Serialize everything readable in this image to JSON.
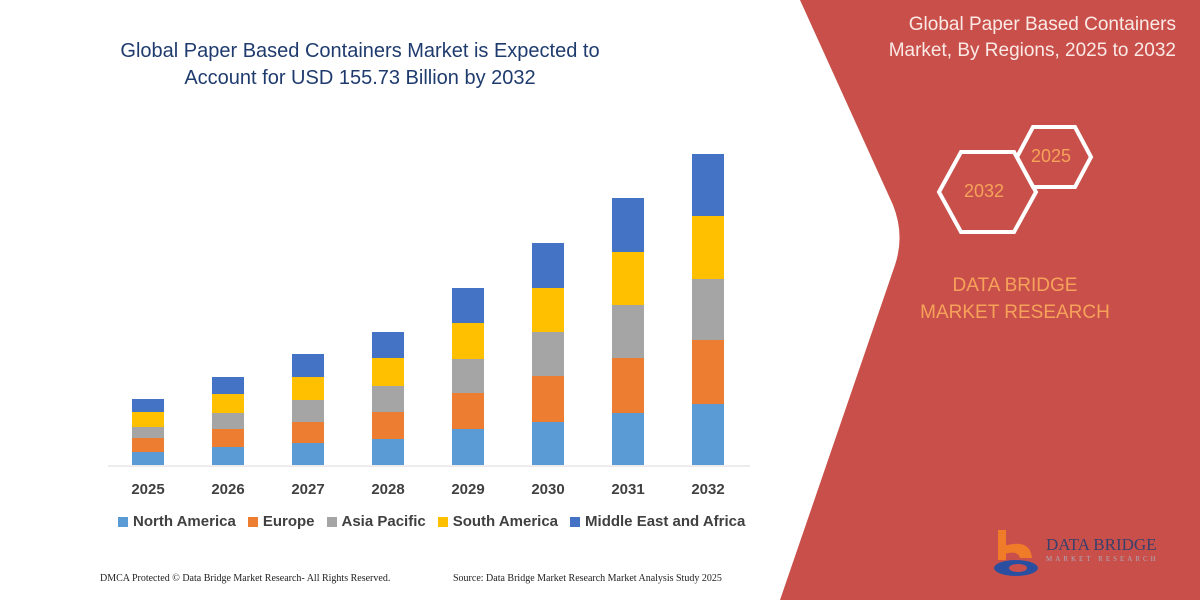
{
  "header": {
    "title": "Global Paper Based Containers Market is Expected to Account for USD 155.73 Billion by 2032"
  },
  "side_panel": {
    "title": "Global Paper Based Containers Market, By Regions, 2025 to 2032",
    "hex_start": "2025",
    "hex_end": "2032",
    "brand": "DATA BRIDGE MARKET RESEARCH",
    "logo_text": "DATA BRIDGE",
    "logo_sub": "MARKET RESEARCH",
    "color": "#C9504A"
  },
  "footer": {
    "left": "DMCA Protected © Data Bridge Market Research-  All Rights Reserved.",
    "right": "Source: Data Bridge Market Research  Market Analysis Study 2025"
  },
  "chart_data": {
    "type": "bar",
    "stacked": true,
    "title": "Global Paper Based Containers Market is Expected to Account for USD 155.73 Billion by 2032",
    "xlabel": "",
    "ylabel": "",
    "categories": [
      "2025",
      "2026",
      "2027",
      "2028",
      "2029",
      "2030",
      "2031",
      "2032"
    ],
    "legend_position": "bottom",
    "grid": false,
    "series": [
      {
        "name": "North America",
        "color": "#5B9BD5",
        "values": [
          6.5,
          9,
          11,
          13,
          18,
          21.5,
          26,
          30.5
        ]
      },
      {
        "name": "Europe",
        "color": "#ED7D31",
        "values": [
          7,
          9,
          10.5,
          13.5,
          18,
          23,
          27.5,
          32
        ]
      },
      {
        "name": "Asia Pacific",
        "color": "#A5A5A5",
        "values": [
          5.5,
          8,
          11,
          13,
          17,
          22,
          26.5,
          30.5
        ]
      },
      {
        "name": "South America",
        "color": "#FFC000",
        "values": [
          7.5,
          9.5,
          11.5,
          14,
          18,
          22,
          26.5,
          31.5
        ]
      },
      {
        "name": "Middle East and Africa",
        "color": "#4472C4",
        "values": [
          6.5,
          8.5,
          11.5,
          13,
          17.5,
          22.5,
          27,
          31
        ]
      }
    ]
  }
}
